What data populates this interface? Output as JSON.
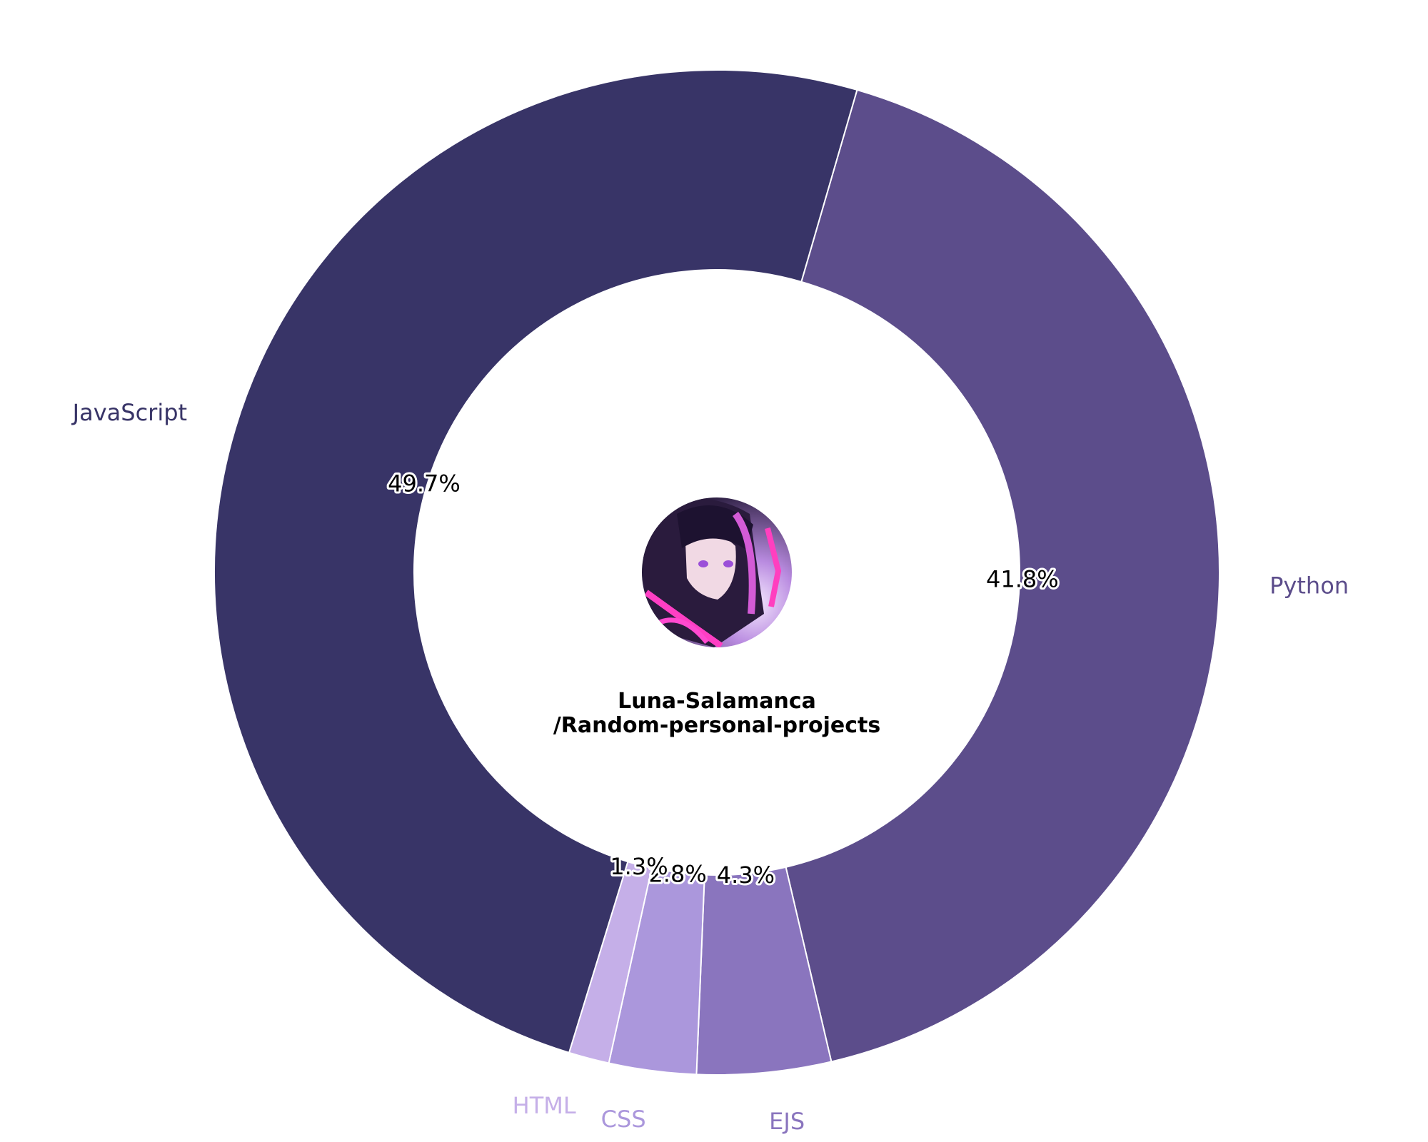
{
  "chart_data": {
    "type": "pie",
    "subtype": "donut",
    "categories": [
      "Python",
      "EJS",
      "CSS",
      "HTML",
      "JavaScript"
    ],
    "values": [
      41.8,
      4.3,
      2.8,
      1.3,
      49.7
    ],
    "value_labels": [
      "41.8%",
      "4.3%",
      "2.8%",
      "1.3%",
      "49.7%"
    ],
    "colors": [
      "#5c4d8b",
      "#8a75be",
      "#ab97dc",
      "#c5afe8",
      "#383467"
    ],
    "start": "top-right",
    "direction": "clockwise",
    "center_label": [
      "Luna-Salamanca",
      "/Random-personal-projects"
    ],
    "center_image": "circular-avatar-anime-portrait",
    "legend": "none"
  }
}
